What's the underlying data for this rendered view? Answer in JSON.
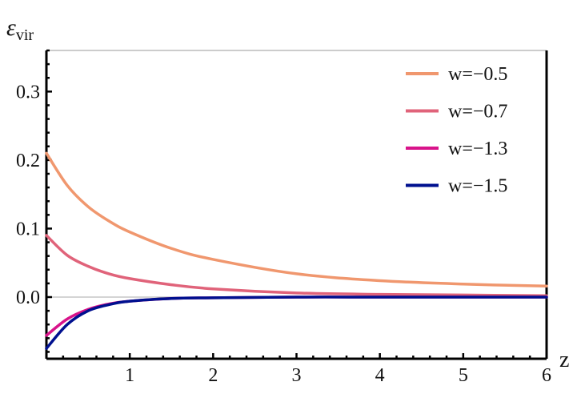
{
  "chart_data": {
    "type": "line",
    "title": "",
    "xlabel": "z",
    "ylabel": "ε",
    "ylabel_sub": "vir",
    "xlim": [
      0,
      6
    ],
    "ylim": [
      -0.09,
      0.36
    ],
    "xticks": [
      1,
      2,
      3,
      4,
      5,
      6
    ],
    "yticks": [
      0.0,
      0.1,
      0.2,
      0.3
    ],
    "ytick_labels": [
      "0.0",
      "0.1",
      "0.2",
      "0.3"
    ],
    "xtick_labels": [
      "1",
      "2",
      "3",
      "4",
      "5",
      "6"
    ],
    "grid": false,
    "legend_position": "top-right",
    "x": [
      0,
      0.25,
      0.5,
      0.75,
      1,
      1.5,
      2,
      3,
      4,
      5,
      6
    ],
    "series": [
      {
        "name": "w=−0.5",
        "color": "#f0976e",
        "values": [
          0.21,
          0.163,
          0.132,
          0.111,
          0.095,
          0.071,
          0.055,
          0.034,
          0.024,
          0.019,
          0.016
        ]
      },
      {
        "name": "w=−0.7",
        "color": "#e0637a",
        "values": [
          0.09,
          0.061,
          0.045,
          0.034,
          0.027,
          0.018,
          0.012,
          0.006,
          0.004,
          0.003,
          0.002
        ]
      },
      {
        "name": "w=−1.3",
        "color": "#d8138a",
        "values": [
          -0.056,
          -0.032,
          -0.018,
          -0.01,
          -0.006,
          -0.002,
          -0.001,
          0,
          0,
          0,
          0
        ]
      },
      {
        "name": "w=−1.5",
        "color": "#00108f",
        "values": [
          -0.075,
          -0.04,
          -0.02,
          -0.011,
          -0.006,
          -0.002,
          -0.001,
          0,
          0,
          0,
          0
        ]
      }
    ]
  }
}
